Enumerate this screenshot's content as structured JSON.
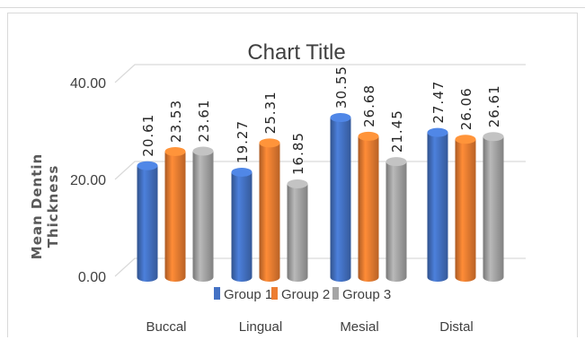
{
  "chart_data": {
    "type": "bar",
    "title": "Chart Title",
    "xlabel": "",
    "ylabel": "Mean Dentin Thickness",
    "categories": [
      "Buccal",
      "Lingual",
      "Mesial",
      "Distal"
    ],
    "series": [
      {
        "name": "Group 1",
        "values": [
          20.61,
          19.27,
          30.55,
          27.47
        ]
      },
      {
        "name": "Group 2",
        "values": [
          23.53,
          25.31,
          26.68,
          26.06
        ]
      },
      {
        "name": "Group 3",
        "values": [
          23.61,
          16.85,
          21.45,
          26.61
        ]
      }
    ],
    "data_labels": [
      [
        "20.61",
        "19.27",
        "30.55",
        "27.47"
      ],
      [
        "23.53",
        "25.31",
        "26.68",
        "26.06"
      ],
      [
        "23.61",
        "16.85",
        "21.45",
        "26.61"
      ]
    ],
    "y_ticks": [
      "0.00",
      "20.00",
      "40.00"
    ],
    "ylim": [
      0,
      40
    ],
    "grid": true,
    "legend_position": "bottom",
    "style": "3d-cylinder",
    "colors": {
      "Group 1": "#4472C4",
      "Group 2": "#ED7D31",
      "Group 3": "#A5A5A5"
    }
  }
}
